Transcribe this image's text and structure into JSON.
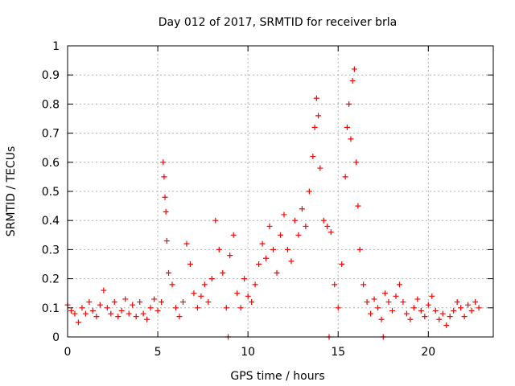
{
  "chart_data": {
    "type": "scatter",
    "title": "Day 012 of 2017, SRMTID for receiver brla",
    "xlabel": "GPS time / hours",
    "ylabel": "SRMTID / TECUs",
    "xlim": [
      0,
      23.6
    ],
    "ylim": [
      0,
      1
    ],
    "xticks": [
      0,
      5,
      10,
      15,
      20
    ],
    "yticks": [
      0,
      0.1,
      0.2,
      0.3,
      0.4,
      0.5,
      0.6,
      0.7,
      0.8,
      0.9,
      1
    ],
    "xtick_labels": [
      "0",
      "5",
      "10",
      "15",
      "20"
    ],
    "ytick_labels": [
      "0",
      "0.1",
      "0.2",
      "0.3",
      "0.4",
      "0.5",
      "0.6",
      "0.7",
      "0.8",
      "0.9",
      "1"
    ],
    "grid": true,
    "legend": "none",
    "marker": "+",
    "series": [
      {
        "name": "SRMTID",
        "color": "#ff0000",
        "points": [
          [
            0.0,
            0.11
          ],
          [
            0.2,
            0.09
          ],
          [
            0.4,
            0.08
          ],
          [
            0.6,
            0.05
          ],
          [
            0.8,
            0.1
          ],
          [
            1.0,
            0.08
          ],
          [
            1.2,
            0.12
          ],
          [
            1.4,
            0.09
          ],
          [
            1.6,
            0.07
          ],
          [
            1.8,
            0.11
          ],
          [
            2.0,
            0.16
          ],
          [
            2.2,
            0.1
          ],
          [
            2.4,
            0.08
          ],
          [
            2.6,
            0.12
          ],
          [
            2.8,
            0.07
          ],
          [
            3.0,
            0.09
          ],
          [
            3.2,
            0.13
          ],
          [
            3.4,
            0.08
          ],
          [
            3.6,
            0.11
          ],
          [
            3.8,
            0.07
          ],
          [
            4.0,
            0.12
          ],
          [
            4.2,
            0.08
          ],
          [
            4.4,
            0.06
          ],
          [
            4.6,
            0.1
          ],
          [
            4.8,
            0.13
          ],
          [
            5.0,
            0.09
          ],
          [
            5.2,
            0.12
          ],
          [
            5.3,
            0.6
          ],
          [
            5.35,
            0.55
          ],
          [
            5.4,
            0.48
          ],
          [
            5.45,
            0.43
          ],
          [
            5.5,
            0.33
          ],
          [
            5.6,
            0.22
          ],
          [
            5.8,
            0.18
          ],
          [
            6.0,
            0.1
          ],
          [
            6.2,
            0.07
          ],
          [
            6.4,
            0.12
          ],
          [
            6.6,
            0.32
          ],
          [
            6.8,
            0.25
          ],
          [
            7.0,
            0.15
          ],
          [
            7.2,
            0.1
          ],
          [
            7.4,
            0.14
          ],
          [
            7.6,
            0.18
          ],
          [
            7.8,
            0.12
          ],
          [
            8.0,
            0.2
          ],
          [
            8.2,
            0.4
          ],
          [
            8.4,
            0.3
          ],
          [
            8.6,
            0.22
          ],
          [
            8.8,
            0.1
          ],
          [
            8.9,
            0.0
          ],
          [
            9.0,
            0.28
          ],
          [
            9.2,
            0.35
          ],
          [
            9.4,
            0.15
          ],
          [
            9.6,
            0.1
          ],
          [
            9.8,
            0.2
          ],
          [
            10.0,
            0.14
          ],
          [
            10.2,
            0.12
          ],
          [
            10.4,
            0.18
          ],
          [
            10.6,
            0.25
          ],
          [
            10.8,
            0.32
          ],
          [
            11.0,
            0.27
          ],
          [
            11.2,
            0.38
          ],
          [
            11.4,
            0.3
          ],
          [
            11.6,
            0.22
          ],
          [
            11.8,
            0.35
          ],
          [
            12.0,
            0.42
          ],
          [
            12.2,
            0.3
          ],
          [
            12.4,
            0.26
          ],
          [
            12.6,
            0.4
          ],
          [
            12.8,
            0.35
          ],
          [
            13.0,
            0.44
          ],
          [
            13.2,
            0.38
          ],
          [
            13.4,
            0.5
          ],
          [
            13.6,
            0.62
          ],
          [
            13.7,
            0.72
          ],
          [
            13.8,
            0.82
          ],
          [
            13.9,
            0.76
          ],
          [
            14.0,
            0.58
          ],
          [
            14.2,
            0.4
          ],
          [
            14.4,
            0.38
          ],
          [
            14.5,
            0.0
          ],
          [
            14.6,
            0.36
          ],
          [
            14.8,
            0.18
          ],
          [
            15.0,
            0.1
          ],
          [
            15.2,
            0.25
          ],
          [
            15.4,
            0.55
          ],
          [
            15.5,
            0.72
          ],
          [
            15.6,
            0.8
          ],
          [
            15.7,
            0.68
          ],
          [
            15.8,
            0.88
          ],
          [
            15.9,
            0.92
          ],
          [
            16.0,
            0.6
          ],
          [
            16.1,
            0.45
          ],
          [
            16.2,
            0.3
          ],
          [
            16.4,
            0.18
          ],
          [
            16.6,
            0.12
          ],
          [
            16.8,
            0.08
          ],
          [
            17.0,
            0.13
          ],
          [
            17.2,
            0.1
          ],
          [
            17.4,
            0.06
          ],
          [
            17.5,
            0.0
          ],
          [
            17.6,
            0.15
          ],
          [
            17.8,
            0.12
          ],
          [
            18.0,
            0.09
          ],
          [
            18.2,
            0.14
          ],
          [
            18.4,
            0.18
          ],
          [
            18.6,
            0.12
          ],
          [
            18.8,
            0.08
          ],
          [
            19.0,
            0.06
          ],
          [
            19.2,
            0.1
          ],
          [
            19.4,
            0.13
          ],
          [
            19.6,
            0.09
          ],
          [
            19.8,
            0.07
          ],
          [
            20.0,
            0.11
          ],
          [
            20.2,
            0.14
          ],
          [
            20.4,
            0.09
          ],
          [
            20.6,
            0.06
          ],
          [
            20.8,
            0.08
          ],
          [
            21.0,
            0.04
          ],
          [
            21.2,
            0.07
          ],
          [
            21.4,
            0.09
          ],
          [
            21.6,
            0.12
          ],
          [
            21.8,
            0.1
          ],
          [
            22.0,
            0.07
          ],
          [
            22.2,
            0.11
          ],
          [
            22.4,
            0.09
          ],
          [
            22.6,
            0.12
          ],
          [
            22.8,
            0.1
          ]
        ]
      }
    ]
  }
}
